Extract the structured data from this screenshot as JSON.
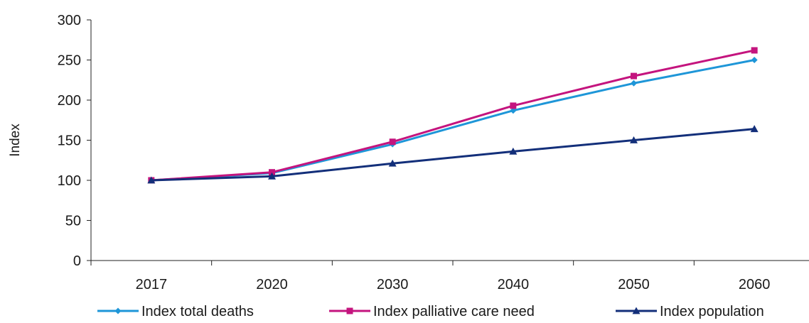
{
  "chart_data": {
    "type": "line",
    "categories": [
      "2017",
      "2020",
      "2030",
      "2040",
      "2050",
      "2060"
    ],
    "series": [
      {
        "name": "Index total deaths",
        "values": [
          100,
          109,
          145,
          187,
          221,
          250
        ],
        "color": "#1e96d8",
        "marker": "diamond"
      },
      {
        "name": "Index palliative care need",
        "values": [
          100,
          110,
          148,
          193,
          230,
          262
        ],
        "color": "#c4147e",
        "marker": "square"
      },
      {
        "name": "Index population",
        "values": [
          100,
          105,
          121,
          136,
          150,
          164
        ],
        "color": "#132f7a",
        "marker": "triangle"
      }
    ],
    "yticks": [
      "0",
      "50",
      "100",
      "150",
      "200",
      "250",
      "300"
    ],
    "ylim": [
      0,
      300
    ],
    "ylabel": "Index",
    "xlabel": "",
    "grid": false,
    "legend_position": "bottom"
  }
}
